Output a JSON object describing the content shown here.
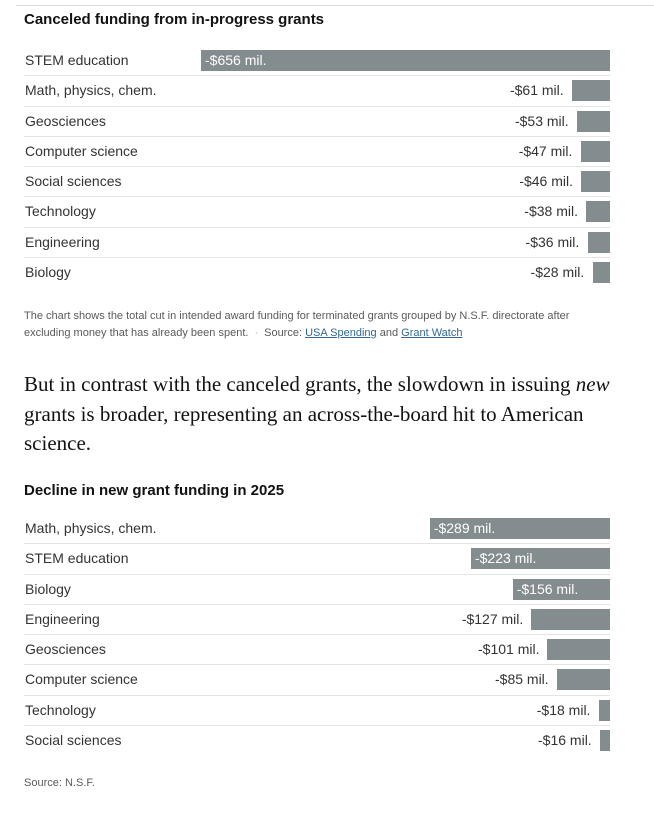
{
  "chart_data": [
    {
      "type": "bar",
      "orientation": "horizontal",
      "title": "Canceled funding from in-progress grants",
      "categories": [
        "STEM education",
        "Math, physics, chem.",
        "Geosciences",
        "Computer science",
        "Social sciences",
        "Technology",
        "Engineering",
        "Biology"
      ],
      "values": [
        -656,
        -61,
        -53,
        -47,
        -46,
        -38,
        -36,
        -28
      ],
      "value_labels": [
        "-$656 mil.",
        "-$61 mil.",
        "-$53 mil.",
        "-$47 mil.",
        "-$46 mil.",
        "-$38 mil.",
        "-$36 mil.",
        "-$28 mil."
      ],
      "xlim": [
        -656,
        0
      ],
      "grid": false,
      "bar_color": "#838d8f"
    },
    {
      "type": "bar",
      "orientation": "horizontal",
      "title": "Decline in new grant funding in 2025",
      "categories": [
        "Math, physics, chem.",
        "STEM education",
        "Biology",
        "Engineering",
        "Geosciences",
        "Computer science",
        "Technology",
        "Social sciences"
      ],
      "values": [
        -289,
        -223,
        -156,
        -127,
        -101,
        -85,
        -18,
        -16
      ],
      "value_labels": [
        "-$289 mil.",
        "-$223 mil.",
        "-$156 mil.",
        "-$127 mil.",
        "-$101 mil.",
        "-$85 mil.",
        "-$18 mil.",
        "-$16 mil."
      ],
      "xlim": [
        -656,
        0
      ],
      "grid": false,
      "bar_color": "#838d8f"
    }
  ],
  "note": {
    "text": "The chart shows the total cut in intended award funding for terminated grants grouped by N.S.F. directorate after excluding money that has already been spent.",
    "separator": "·",
    "source_prefix": "Source:",
    "link1": "USA Spending",
    "and": "and",
    "link2": "Grant Watch"
  },
  "prose": {
    "part1": "But in contrast with the canceled grants, the slowdown in issuing",
    "emphasis": "new",
    "part2": "grants is broader, representing an across-the-board hit to American science."
  },
  "source2": "Source: N.S.F.",
  "colors": {
    "bar": "#838d8f",
    "link": "#326891",
    "text": "#121212",
    "muted": "#5a5a5a"
  }
}
